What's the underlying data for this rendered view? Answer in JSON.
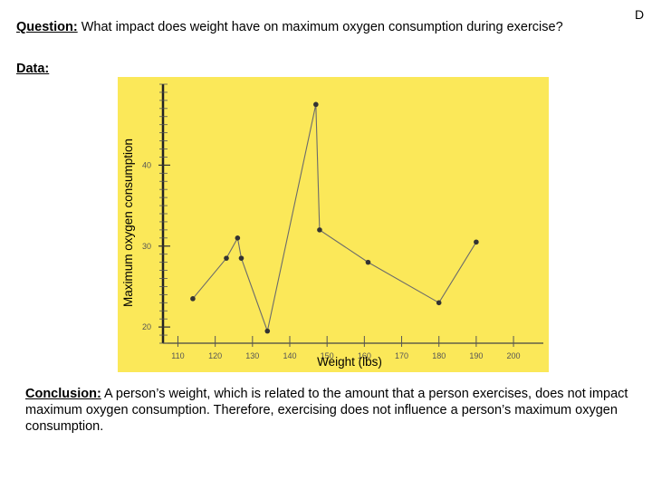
{
  "question": {
    "label": "Question:",
    "text": "What impact does weight have on maximum oxygen consumption during exercise?"
  },
  "corner_letter": "D",
  "data_label": "Data:",
  "chart_data": {
    "type": "line",
    "title": "",
    "xlabel": "Weight (lbs)",
    "ylabel": "Maximum oxygen consumption",
    "x_ticks": [
      110,
      120,
      130,
      140,
      150,
      160,
      170,
      180,
      190,
      200
    ],
    "y_ticks": [
      20,
      30,
      40
    ],
    "xlim": [
      106,
      208
    ],
    "ylim": [
      18,
      50
    ],
    "grid": false,
    "background_color": "#fbe859",
    "line_color": "#6b6b6b",
    "point_color": "#333333",
    "x": [
      114,
      123,
      126,
      127,
      134,
      147,
      148,
      161,
      180,
      190
    ],
    "y": [
      23.5,
      28.5,
      31,
      28.5,
      19.5,
      47.5,
      32,
      28,
      23,
      30.5
    ]
  },
  "conclusion": {
    "label": "Conclusion:",
    "text": "A person’s weight, which is related to the amount that a person exercises, does not impact maximum oxygen consumption. Therefore, exercising does not influence a person’s maximum oxygen consumption."
  }
}
